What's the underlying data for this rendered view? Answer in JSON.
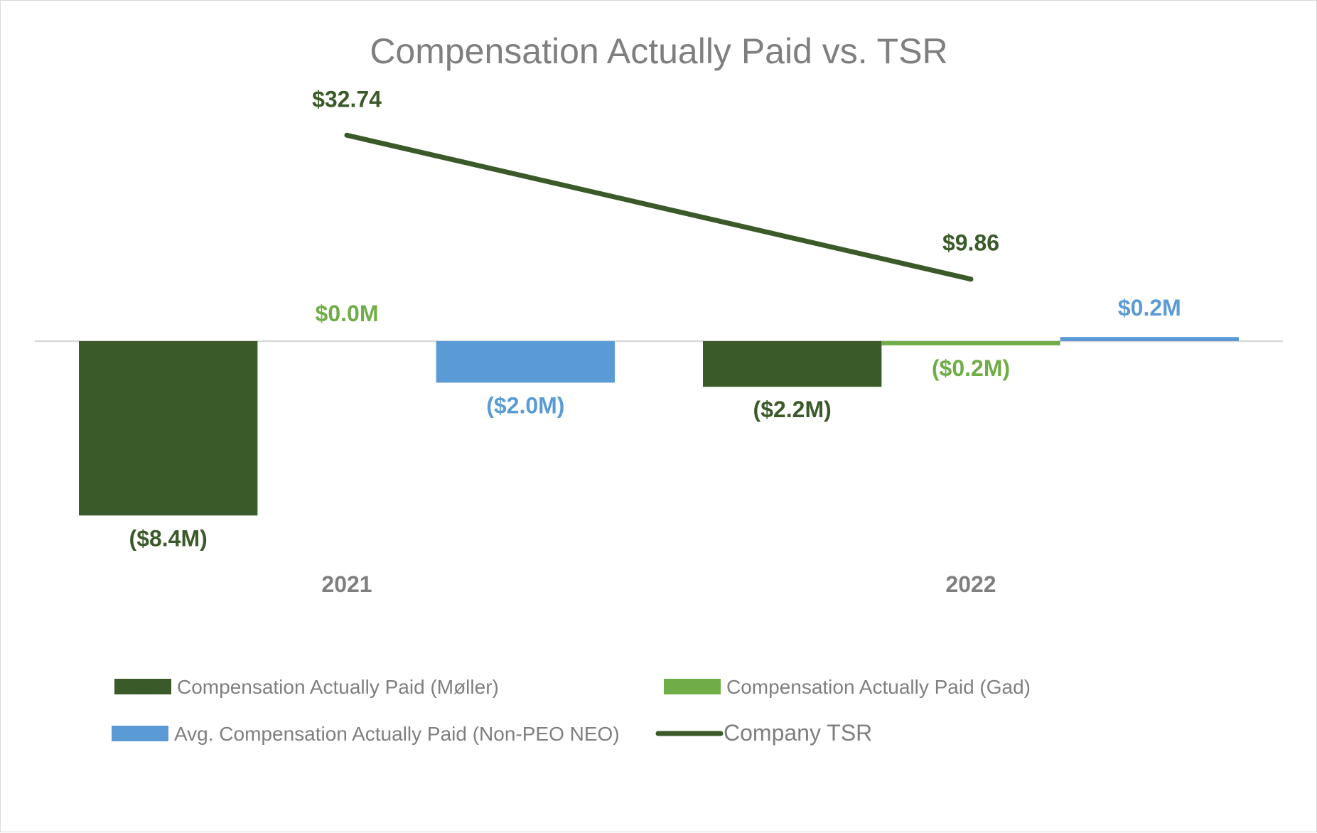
{
  "chart_data": {
    "type": "bar",
    "title": "Compensation Actually Paid vs. TSR",
    "categories": [
      "2021",
      "2022"
    ],
    "series": [
      {
        "name": "Compensation Actually Paid (Møller)",
        "kind": "bar",
        "color": "#3b5a2a",
        "values": [
          -8.4,
          -2.2
        ],
        "labels": [
          "($8.4M)",
          "($2.2M)"
        ]
      },
      {
        "name": "Compensation Actually Paid (Gad)",
        "kind": "bar",
        "color": "#70ad47",
        "values": [
          0.0,
          -0.2
        ],
        "labels": [
          "$0.0M",
          "($0.2M)"
        ]
      },
      {
        "name": "Avg. Compensation Actually Paid (Non-PEO NEO)",
        "kind": "bar",
        "color": "#5b9bd5",
        "values": [
          -2.0,
          0.2
        ],
        "labels": [
          "($2.0M)",
          "$0.2M"
        ]
      },
      {
        "name": "Company TSR",
        "kind": "line",
        "axis": "secondary",
        "color": "#3b5a2a",
        "values": [
          32.74,
          9.86
        ],
        "labels": [
          "$32.74",
          "$9.86"
        ]
      }
    ],
    "grid": false,
    "legend_position": "bottom"
  }
}
